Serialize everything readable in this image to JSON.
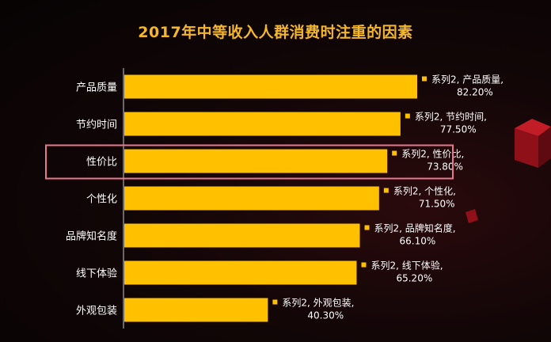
{
  "chart_data": {
    "type": "bar",
    "orientation": "horizontal",
    "title": "2017年中等收入人群消费时注重的因素",
    "categories": [
      "产品质量",
      "节约时间",
      "性价比",
      "个性化",
      "品牌知名度",
      "线下体验",
      "外观包装"
    ],
    "series": [
      {
        "values": [
          82.2,
          77.5,
          73.8,
          71.5,
          66.1,
          65.2,
          40.3
        ],
        "data_labels": [
          "系列2, 产品质量,|82.20%",
          "系列2, 节约时间,|77.50%",
          "系列2, 性价比,|73.80%",
          "系列2, 个性化,|71.50%",
          "系列2, 品牌知名度,|66.10%",
          "系列2, 线下体验,|65.20%",
          "系列2, 外观包装,|40.30%"
        ]
      }
    ],
    "xlim": [
      0,
      100
    ],
    "highlighted_category": "性价比",
    "grid": false,
    "colors": {
      "bar": "#ffc000",
      "title": "#f5b72a",
      "highlight": "#e8788f",
      "background": "#0b0506"
    }
  }
}
